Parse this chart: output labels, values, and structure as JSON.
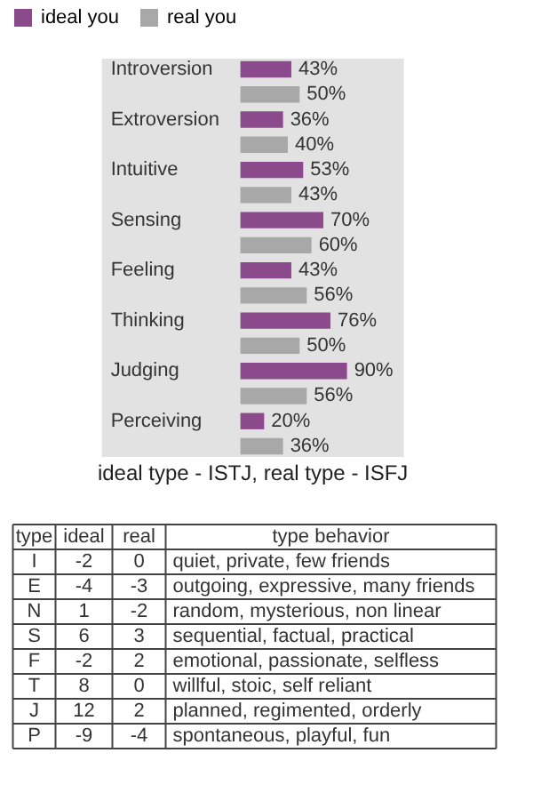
{
  "chart_data": [
    {
      "type": "bar",
      "orientation": "horizontal",
      "title": "ideal type - ISTJ, real type - ISFJ",
      "legend": "top",
      "categories": [
        "Introversion",
        "Extroversion",
        "Intuitive",
        "Sensing",
        "Feeling",
        "Thinking",
        "Judging",
        "Perceiving"
      ],
      "series": [
        {
          "name": "ideal you",
          "color": "#8a4a8c",
          "values": [
            43,
            36,
            53,
            70,
            43,
            76,
            90,
            20
          ],
          "value_labels": [
            "43%",
            "36%",
            "53%",
            "70%",
            "43%",
            "76%",
            "90%",
            "20%"
          ]
        },
        {
          "name": "real you",
          "color": "#a8a8a8",
          "values": [
            50,
            40,
            43,
            60,
            56,
            50,
            56,
            36
          ],
          "value_labels": [
            "50%",
            "40%",
            "43%",
            "60%",
            "56%",
            "50%",
            "56%",
            "36%"
          ]
        }
      ]
    },
    {
      "type": "other",
      "ylabel": "type",
      "data_labels": true,
      "xlabel": "type behavior",
      "categories": [
        "I",
        "E",
        "N",
        "S",
        "F",
        "T",
        "J",
        "P"
      ],
      "series": [
        {
          "name": "ideal",
          "values": [
            -2,
            -4,
            1,
            6,
            -2,
            8,
            12,
            -9
          ]
        },
        {
          "name": "real",
          "values": [
            0,
            -3,
            -2,
            3,
            2,
            0,
            2,
            -4
          ]
        }
      ],
      "annotations": [
        "quiet, private, few friends",
        "outgoing, expressive, many friends",
        "random, mysterious, non linear",
        "sequential, factual, practical",
        "emotional, passionate, selfless",
        "willful, stoic, self reliant",
        "planned, regimented, orderly",
        "spontaneous, playful, fun"
      ]
    }
  ]
}
